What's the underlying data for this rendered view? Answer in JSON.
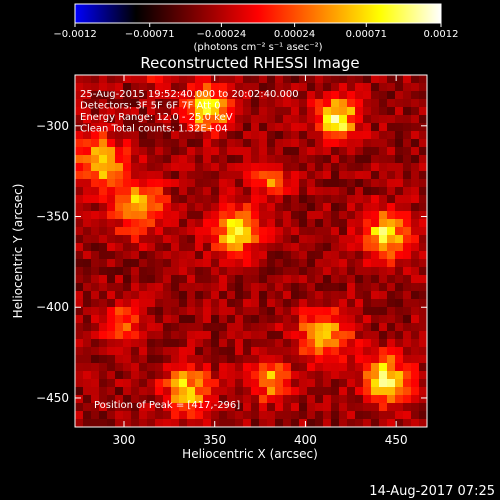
{
  "chart_data": {
    "type": "heatmap",
    "title": "Reconstructed RHESSI Image",
    "xlabel": "Heliocentric X (arcsec)",
    "ylabel": "Heliocentric Y (arcsec)",
    "xlim": [
      273,
      467
    ],
    "ylim": [
      -466,
      -272
    ],
    "xticks": [
      300,
      350,
      400,
      450
    ],
    "yticks": [
      -300,
      -350,
      -400,
      -450
    ],
    "xtick_labels": [
      "300",
      "350",
      "400",
      "450"
    ],
    "ytick_labels": [
      "−300",
      "−350",
      "−400",
      "−450"
    ],
    "colorbar": {
      "min": -0.0012,
      "max": 0.0012,
      "ticks": [
        -0.0012,
        -0.00071,
        -0.00024,
        0.00024,
        0.00071,
        0.0012
      ],
      "tick_labels": [
        "−0.0012",
        "−0.00071",
        "−0.00024",
        "0.00024",
        "0.00071",
        "0.0012"
      ],
      "units": "(photons cm⁻² s⁻¹ asec⁻²)",
      "colors": [
        "#0000ff",
        "#000000",
        "#800000",
        "#ff0000",
        "#ff8000",
        "#ffff00",
        "#ffffff"
      ]
    },
    "annotations": [
      "25-Aug-2015 19:52:40.000 to 20:02:40.000",
      "Detectors: 3F 5F 6F 7F  Att 0",
      "Energy Range: 12.0 - 25.0 keV",
      "Clean     Total counts: 1.32E+04"
    ],
    "peak_label": "Position of Peak = [417,-296]",
    "peak": [
      417,
      -296
    ],
    "sources": [
      {
        "x": 347,
        "y": -290,
        "amp": 0.00115,
        "w": 8
      },
      {
        "x": 417,
        "y": -296,
        "amp": 0.0012,
        "w": 8
      },
      {
        "x": 287,
        "y": -320,
        "amp": 0.0009,
        "w": 10
      },
      {
        "x": 308,
        "y": -345,
        "amp": 0.0009,
        "w": 10
      },
      {
        "x": 362,
        "y": -358,
        "amp": 0.00115,
        "w": 9
      },
      {
        "x": 445,
        "y": -360,
        "amp": 0.001,
        "w": 9
      },
      {
        "x": 380,
        "y": -330,
        "amp": 0.0006,
        "w": 7
      },
      {
        "x": 410,
        "y": -415,
        "amp": 0.0009,
        "w": 10
      },
      {
        "x": 445,
        "y": -440,
        "amp": 0.0011,
        "w": 9
      },
      {
        "x": 335,
        "y": -445,
        "amp": 0.0009,
        "w": 9
      },
      {
        "x": 380,
        "y": -440,
        "amp": 0.0008,
        "w": 8
      },
      {
        "x": 300,
        "y": -410,
        "amp": 0.0006,
        "w": 8
      },
      {
        "x": 320,
        "y": -270,
        "amp": 0.0005,
        "w": 7
      }
    ]
  },
  "footer": {
    "timestamp": "14-Aug-2017 07:25"
  }
}
